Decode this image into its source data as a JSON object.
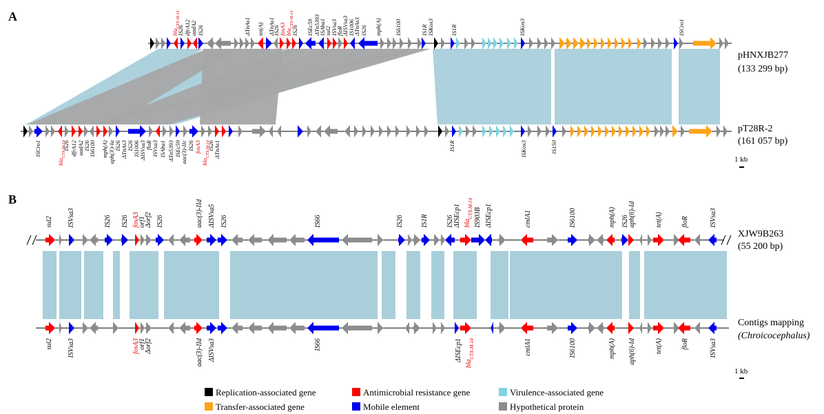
{
  "colors": {
    "replication": "#000000",
    "resistance": "#ff0000",
    "virulence": "#7fd3df",
    "transfer": "#ffa31a",
    "mobile": "#0000ee",
    "hypothetical": "#8c8c8c",
    "homology": "#a9cfdb",
    "inverted": "#a6a6a6",
    "backbone": "#000000"
  },
  "panelA": {
    "label": "A",
    "track1": {
      "name": "pHNXJB277",
      "size": "(133 299 bp)",
      "labels": [
        "bla<sub>CTX-M-14</sub>",
        "IS26",
        "dfrA12",
        "aadA2",
        "IS26",
        "ΔTnAs1",
        "tet(A)",
        "ΔTnAs1",
        "IS26",
        "fosA3",
        "bla<sub>CTX-M-14</sub>",
        "IS26",
        "ISEc59",
        "ΔTn5393",
        "ISAba1",
        "sul2",
        "ISVsa3",
        "floR",
        "ΔISVsa3",
        "IS1006",
        "ΔTnAs3",
        "IS26",
        "mph(A)",
        "IS6100",
        "IS1R",
        "ISKox3",
        "IS1R",
        "ISKox3",
        "ISCro1"
      ]
    },
    "track2": {
      "name": "pT28R-2",
      "size": "(161 057 bp)",
      "labels": [
        "ISCro1",
        "bla<sub>CTX-M-14</sub>",
        "IS26",
        "dfrA12",
        "aadA2",
        "IS26",
        "IS6100",
        "mph(A)",
        "aph(3')-Ia",
        "IS26",
        "ΔTnAs3",
        "IS26",
        "IS1006",
        "ΔISVsa3",
        "floR",
        "ISVsa3",
        "ISAba1",
        "ΔTn5393",
        "ISEc59",
        "aac(3)-IIc",
        "IS26",
        "fosA3",
        "bla<sub>CTX-M-14</sub>",
        "IS26",
        "ΔTnAs1",
        "IS1R",
        "ISKox3",
        "IS150"
      ]
    },
    "scale": "1 kb"
  },
  "panelB": {
    "label": "B",
    "track1": {
      "name": "XJW9B263",
      "size": "(55 200 bp)",
      "labels": [
        "sul2",
        "ISVsa3",
        "IS26",
        "IS26",
        "fosA3",
        "orf1",
        "Δorf2",
        "IS26",
        "aac(3)-IId",
        "ΔISVsa5",
        "IS26",
        "IS66",
        "IS26",
        "IS1R",
        "IS26",
        "ΔISEcp1",
        "bla<sub>CTX-M-14</sub>",
        "IS903B",
        "ΔISEcp1",
        "cmlA1",
        "IS6100",
        "mph(A)",
        "IS26",
        "aph(6)-Id",
        "tet(A)",
        "floR",
        "ISVsa3"
      ]
    },
    "track2": {
      "name": "Contigs mapping",
      "size": "(Chroicocephalus)",
      "labels": [
        "sul2",
        "ISVsa3",
        "fosA3",
        "orf1",
        "Δorf2",
        "aac(3)-IId",
        "ΔISVsa3",
        "IS66",
        "ΔISEcp1",
        "bla<sub>CTX-M-14</sub>",
        "cmlA1",
        "IS6100",
        "mph(A)",
        "aph(6)-Id",
        "tet(A)",
        "floR",
        "ISVsa3"
      ]
    },
    "scale": "1 kb"
  },
  "legend": [
    {
      "key": "replication",
      "label": "Replication-associated gene"
    },
    {
      "key": "resistance",
      "label": "Antimicrobial resistance gene"
    },
    {
      "key": "virulence",
      "label": "Virulence-associated gene"
    },
    {
      "key": "transfer",
      "label": "Transfer-associated gene"
    },
    {
      "key": "mobile",
      "label": "Mobile element"
    },
    {
      "key": "hypothetical",
      "label": "Hypothetical protein"
    }
  ]
}
